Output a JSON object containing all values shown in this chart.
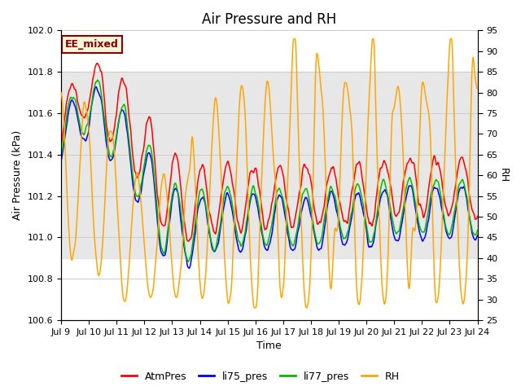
{
  "title": "Air Pressure and RH",
  "xlabel": "Time",
  "ylabel_left": "Air Pressure (kPa)",
  "ylabel_right": "RH",
  "ylim_left": [
    100.6,
    102.0
  ],
  "ylim_right": [
    25,
    95
  ],
  "yticks_left": [
    100.6,
    100.8,
    101.0,
    101.2,
    101.4,
    101.6,
    101.8,
    102.0
  ],
  "yticks_right": [
    25,
    30,
    35,
    40,
    45,
    50,
    55,
    60,
    65,
    70,
    75,
    80,
    85,
    90,
    95
  ],
  "xtick_labels": [
    "Jul 9",
    "Jul 10",
    "Jul 11",
    "Jul 12",
    "Jul 13",
    "Jul 14",
    "Jul 15",
    "Jul 16",
    "Jul 17",
    "Jul 18",
    "Jul 19",
    "Jul 20",
    "Jul 21",
    "Jul 22",
    "Jul 23",
    "Jul 24"
  ],
  "n_days": 16,
  "annotation_text": "EE_mixed",
  "annotation_color": "#8B0000",
  "annotation_bg": "#F5F5DC",
  "shade_band": [
    100.9,
    101.8
  ],
  "shade_color": "#d8d8d8",
  "colors": {
    "AtmPres": "#FF0000",
    "li75_pres": "#0000FF",
    "li77_pres": "#00BB00",
    "RH": "#FFA500"
  },
  "legend_labels": [
    "AtmPres",
    "li75_pres",
    "li77_pres",
    "RH"
  ],
  "bg_color": "#ffffff",
  "grid_color": "#cccccc",
  "title_fontsize": 12,
  "axis_fontsize": 9,
  "tick_fontsize": 8,
  "legend_fontsize": 9
}
